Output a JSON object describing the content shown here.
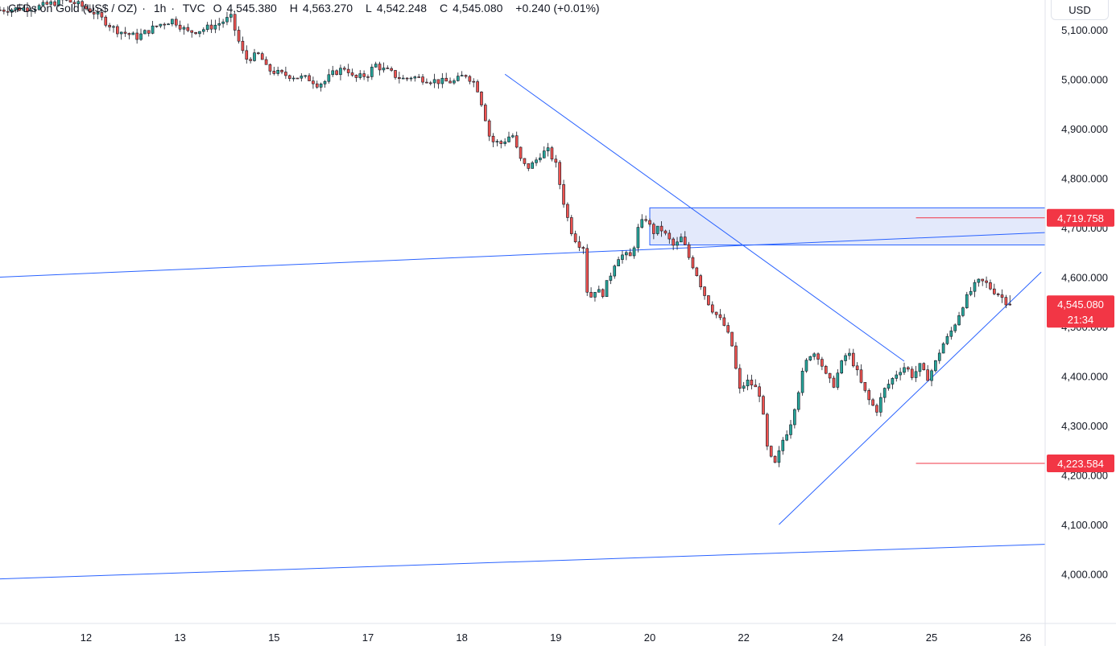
{
  "header": {
    "symbol": "CFDs on Gold (US$ / OZ)",
    "interval": "1h",
    "source": "TVC",
    "open_label": "O",
    "open": "4,545.380",
    "high_label": "H",
    "high": "4,563.270",
    "low_label": "L",
    "low": "4,542.248",
    "close_label": "C",
    "close": "4,545.080",
    "change": "+0.240 (+0.01%)"
  },
  "price_scale": {
    "currency": "USD",
    "current_price": "4,545.080",
    "countdown": "21:34",
    "level_upper": "4,719.758",
    "level_lower": "4,223.584"
  },
  "colors": {
    "up": "#26a69a",
    "down": "#ef5350",
    "line": "#2962ff",
    "zone_fill": "#e3e9fb",
    "level": "#f23645",
    "text": "#131722",
    "axis_border": "#e0e3eb"
  },
  "chart_data": {
    "type": "candlestick",
    "y_axis": {
      "ticks": [
        5100,
        5000,
        4900,
        4800,
        4700,
        4600,
        4500,
        4400,
        4300,
        4200,
        4100,
        4000
      ],
      "tick_labels": [
        "5,100.000",
        "5,000.000",
        "4,900.000",
        "4,800.000",
        "4,700.000",
        "4,600.000",
        "4,500.000",
        "4,400.000",
        "4,300.000",
        "4,200.000",
        "4,100.000",
        "4,000.000"
      ],
      "ylim": [
        3900,
        5160
      ]
    },
    "x_axis": {
      "tick_labels": [
        "12",
        "13",
        "15",
        "17",
        "18",
        "19",
        "20",
        "22",
        "24",
        "25",
        "26"
      ],
      "tick_positions": [
        0,
        24,
        48,
        72,
        96,
        120,
        144,
        168,
        192,
        216,
        240
      ],
      "xlim": [
        -22,
        245
      ]
    },
    "candles": [],
    "drawings": {
      "resistance_zone": {
        "x_start": 144,
        "x_end": 245,
        "y_top": 4740,
        "y_bottom": 4665
      },
      "descending_trendline": [
        {
          "x": 107,
          "y": 5010
        },
        {
          "x": 209,
          "y": 4430
        }
      ],
      "ascending_trendline": [
        {
          "x": 177,
          "y": 4100
        },
        {
          "x": 244,
          "y": 4610
        }
      ],
      "long_trendline_upper": [
        {
          "x": -22,
          "y": 4600
        },
        {
          "x": 245,
          "y": 4690
        }
      ],
      "long_trendline_lower": [
        {
          "x": -22,
          "y": 3990
        },
        {
          "x": 245,
          "y": 4060
        }
      ],
      "level_upper": {
        "x_start": 212,
        "x_end": 245,
        "y": 4719.758
      },
      "level_lower": {
        "x_start": 212,
        "x_end": 245,
        "y": 4223.584
      }
    },
    "current_price": 4545.08
  }
}
